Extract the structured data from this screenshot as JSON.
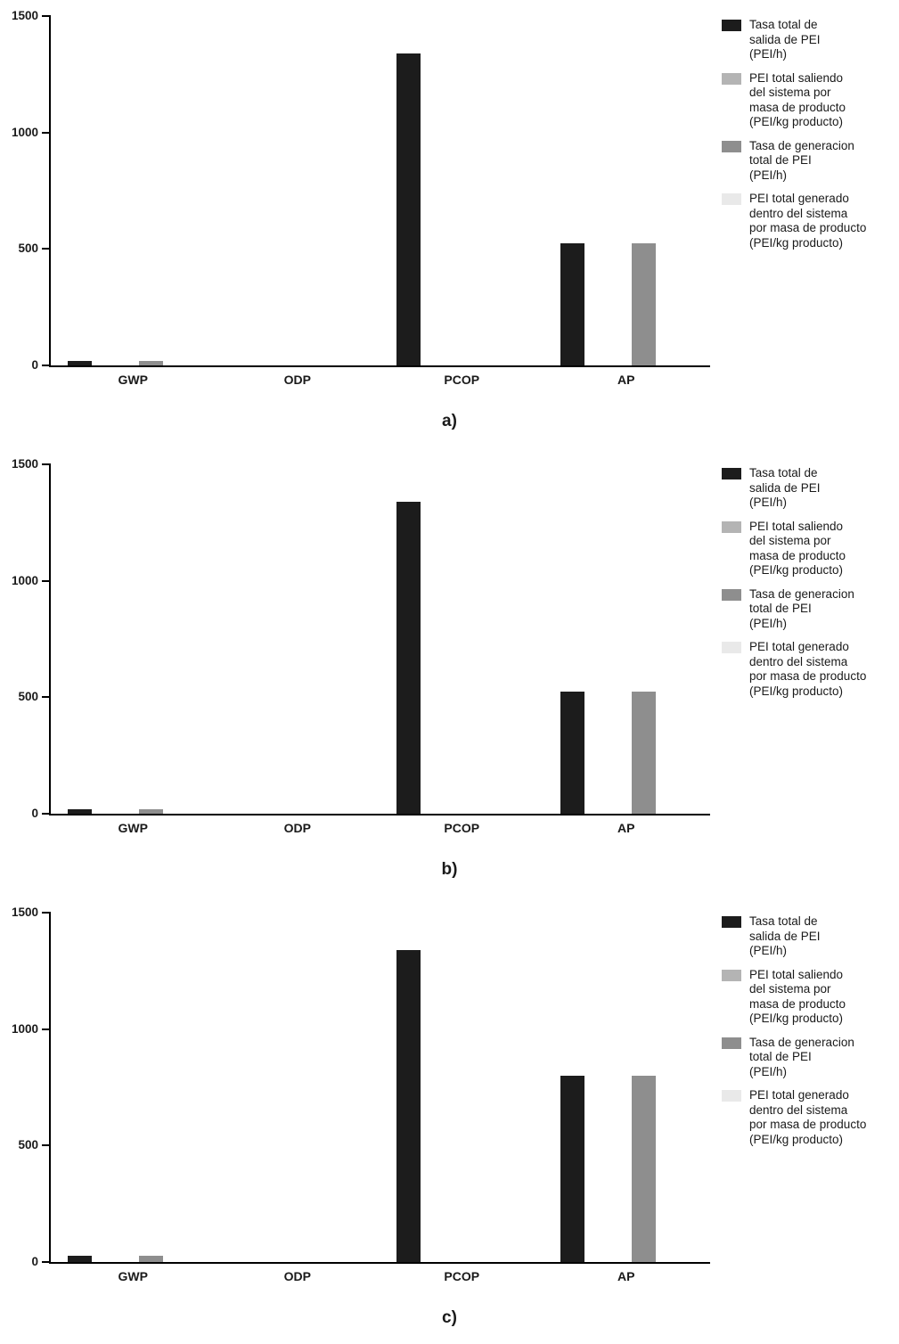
{
  "panel_labels": [
    "a)",
    "b)",
    "c)"
  ],
  "colors": {
    "axis": "#000000",
    "series1": "#1c1c1c",
    "series2": "#b4b4b4",
    "series3": "#8e8e8e",
    "series4": "#e9e9e9"
  },
  "legend": [
    {
      "text": "Tasa total de\nsalida de PEI\n (PEI/h)",
      "color": "#1c1c1c"
    },
    {
      "text": "PEI total saliendo\ndel sistema por\nmasa de producto\n(PEI/kg producto)",
      "color": "#b4b4b4"
    },
    {
      "text": "Tasa de generacion\ntotal de PEI\n (PEI/h)",
      "color": "#8e8e8e"
    },
    {
      "text": "PEI total generado\ndentro del sistema\npor masa de producto\n(PEI/kg producto)",
      "color": "#e9e9e9"
    }
  ],
  "chart_data": [
    {
      "type": "bar",
      "panel": "a)",
      "title": "",
      "xlabel": "",
      "ylabel": "",
      "categories": [
        "GWP",
        "ODP",
        "PCOP",
        "AP"
      ],
      "series": [
        {
          "name": "Tasa total de salida de PEI (PEI/h)",
          "color": "#1c1c1c",
          "values": [
            20,
            0,
            1340,
            525
          ]
        },
        {
          "name": "PEI total saliendo del sistema por masa de producto (PEI/kg producto)",
          "color": "#b4b4b4",
          "values": [
            0,
            0,
            0,
            0
          ]
        },
        {
          "name": "Tasa de generacion total de PEI (PEI/h)",
          "color": "#8e8e8e",
          "values": [
            20,
            0,
            0,
            525
          ]
        },
        {
          "name": "PEI total generado dentro del sistema por masa de producto (PEI/kg producto)",
          "color": "#e9e9e9",
          "values": [
            0,
            0,
            0,
            0
          ]
        }
      ],
      "ylim": [
        0,
        1500
      ],
      "yticks": [
        0,
        500,
        1000,
        1500
      ],
      "grid": false,
      "legend_position": "right"
    },
    {
      "type": "bar",
      "panel": "b)",
      "title": "",
      "xlabel": "",
      "ylabel": "",
      "categories": [
        "GWP",
        "ODP",
        "PCOP",
        "AP"
      ],
      "series": [
        {
          "name": "Tasa total de salida de PEI (PEI/h)",
          "color": "#1c1c1c",
          "values": [
            20,
            0,
            1340,
            525
          ]
        },
        {
          "name": "PEI total saliendo del sistema por masa de producto (PEI/kg producto)",
          "color": "#b4b4b4",
          "values": [
            0,
            0,
            0,
            0
          ]
        },
        {
          "name": "Tasa de generacion total de PEI (PEI/h)",
          "color": "#8e8e8e",
          "values": [
            20,
            0,
            0,
            525
          ]
        },
        {
          "name": "PEI total generado dentro del sistema por masa de producto (PEI/kg producto)",
          "color": "#e9e9e9",
          "values": [
            0,
            0,
            0,
            0
          ]
        }
      ],
      "ylim": [
        0,
        1500
      ],
      "yticks": [
        0,
        500,
        1000,
        1500
      ],
      "grid": false,
      "legend_position": "right"
    },
    {
      "type": "bar",
      "panel": "c)",
      "title": "",
      "xlabel": "",
      "ylabel": "",
      "categories": [
        "GWP",
        "ODP",
        "PCOP",
        "AP"
      ],
      "series": [
        {
          "name": "Tasa total de salida de PEI (PEI/h)",
          "color": "#1c1c1c",
          "values": [
            25,
            0,
            1340,
            800
          ]
        },
        {
          "name": "PEI total saliendo del sistema por masa de producto (PEI/kg producto)",
          "color": "#b4b4b4",
          "values": [
            0,
            0,
            0,
            0
          ]
        },
        {
          "name": "Tasa de generacion total de PEI (PEI/h)",
          "color": "#8e8e8e",
          "values": [
            25,
            0,
            0,
            800
          ]
        },
        {
          "name": "PEI total generado dentro del sistema por masa de producto (PEI/kg producto)",
          "color": "#e9e9e9",
          "values": [
            0,
            0,
            0,
            0
          ]
        }
      ],
      "ylim": [
        0,
        1500
      ],
      "yticks": [
        0,
        500,
        1000,
        1500
      ],
      "grid": false,
      "legend_position": "right"
    }
  ]
}
